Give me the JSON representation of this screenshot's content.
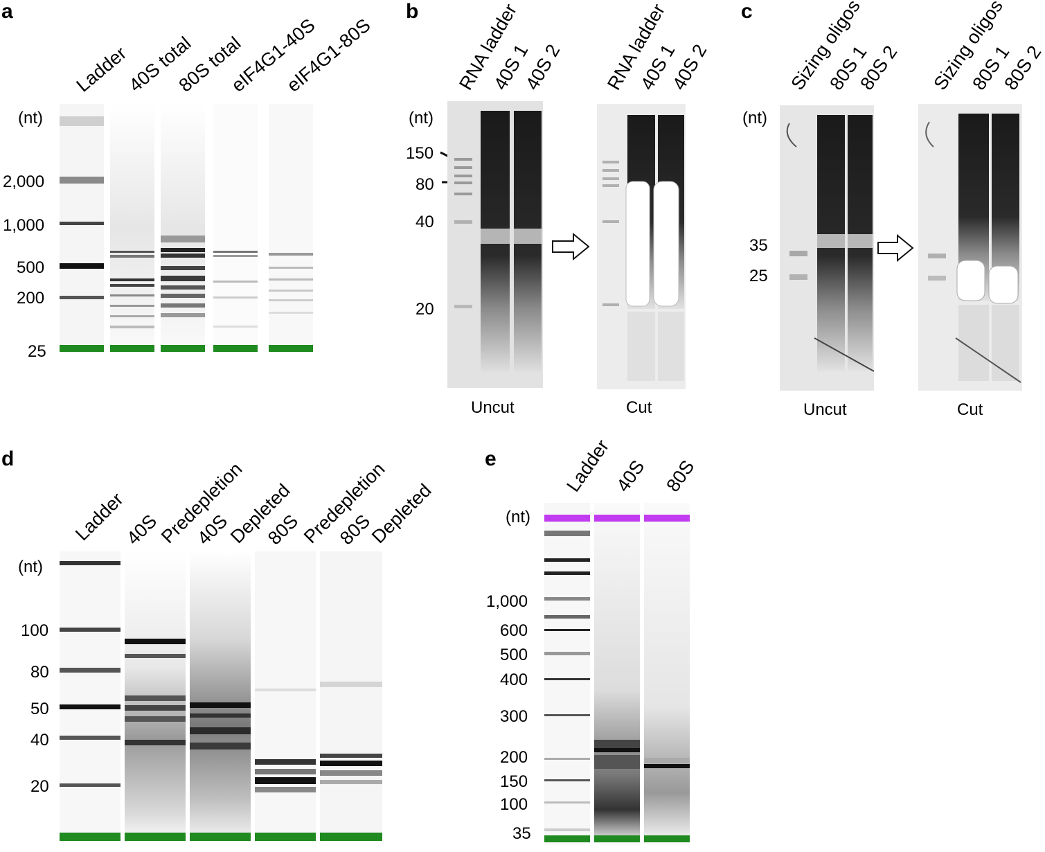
{
  "panels": {
    "a": {
      "label": "a",
      "lanes": [
        "Ladder",
        "40S total",
        "80S total",
        "eIF4G1-40S",
        "eIF4G1-80S"
      ],
      "unit": "(nt)",
      "ticks": [
        "2,000",
        "1,000",
        "500",
        "200",
        "25"
      ]
    },
    "b": {
      "label": "b",
      "lanes_uncut": [
        "RNA ladder",
        "40S 1",
        "40S 2"
      ],
      "lanes_cut": [
        "RNA ladder",
        "40S 1",
        "40S 2"
      ],
      "unit": "(nt)",
      "ticks": [
        "150",
        "80",
        "40",
        "20"
      ],
      "caption_uncut": "Uncut",
      "caption_cut": "Cut"
    },
    "c": {
      "label": "c",
      "lanes_uncut": [
        "Sizing oligos",
        "80S 1",
        "80S 2"
      ],
      "lanes_cut": [
        "Sizing oligos",
        "80S 1",
        "80S 2"
      ],
      "unit": "(nt)",
      "ticks": [
        "35",
        "25"
      ],
      "caption_uncut": "Uncut",
      "caption_cut": "Cut"
    },
    "d": {
      "label": "d",
      "lanes": [
        {
          "a": "Ladder",
          "b": ""
        },
        {
          "a": "40S",
          "b": "Predepletion"
        },
        {
          "a": "40S",
          "b": "Depleted"
        },
        {
          "a": "80S",
          "b": "Predepletion"
        },
        {
          "a": "80S",
          "b": "Depleted"
        }
      ],
      "unit": "(nt)",
      "ticks": [
        "100",
        "80",
        "50",
        "40",
        "20"
      ]
    },
    "e": {
      "label": "e",
      "lanes": [
        "Ladder",
        "40S",
        "80S"
      ],
      "unit": "(nt)",
      "ticks": [
        "1,000",
        "600",
        "500",
        "400",
        "300",
        "200",
        "150",
        "100",
        "35"
      ]
    }
  },
  "colors": {
    "marker_green": "#1f8a1f",
    "marker_magenta": "#c13cf0",
    "band_dark": "#111111"
  }
}
